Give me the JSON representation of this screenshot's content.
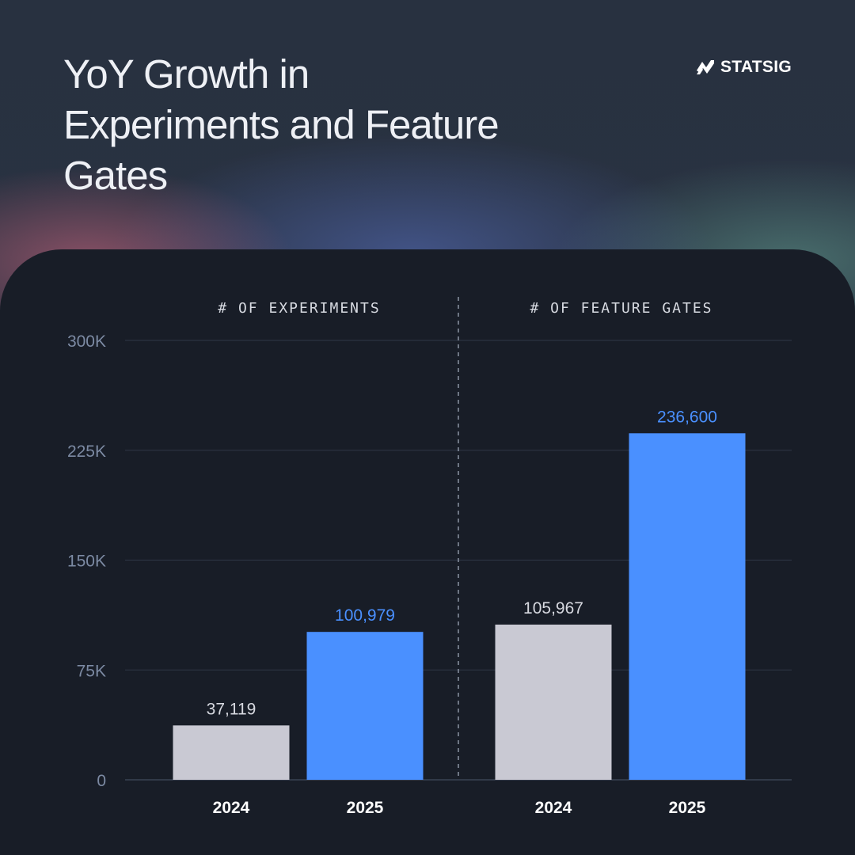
{
  "title": "YoY Growth in Experiments and Feature Gates",
  "brand": {
    "name": "STATSIG",
    "logo_icon": "statsig-logo-icon"
  },
  "colors": {
    "bar_2024": "#c9c9d3",
    "bar_2025": "#4a90ff",
    "label_2024": "#d7d9e0",
    "label_2025": "#4a90ff",
    "gridline": "#2f3747",
    "axis": "#4a5568"
  },
  "chart_data": {
    "type": "bar",
    "y_ticks": [
      "300K",
      "225K",
      "150K",
      "75K",
      "0"
    ],
    "ylim": [
      0,
      300000
    ],
    "grid": true,
    "panels": [
      {
        "title": "# OF EXPERIMENTS",
        "categories": [
          "2024",
          "2025"
        ],
        "values": [
          37119,
          100979
        ],
        "value_labels": [
          "37,119",
          "100,979"
        ]
      },
      {
        "title": "# OF FEATURE GATES",
        "categories": [
          "2024",
          "2025"
        ],
        "values": [
          105967,
          236600
        ],
        "value_labels": [
          "105,967",
          "236,600"
        ]
      }
    ]
  }
}
